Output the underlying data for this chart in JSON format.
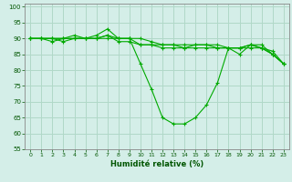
{
  "xlabel": "Humidité relative (%)",
  "bg_color": "#d4eee8",
  "grid_color": "#b0d8c8",
  "line_color": "#00aa00",
  "xlim": [
    -0.5,
    23.5
  ],
  "ylim": [
    55,
    101
  ],
  "yticks": [
    55,
    60,
    65,
    70,
    75,
    80,
    85,
    90,
    95,
    100
  ],
  "xticks": [
    0,
    1,
    2,
    3,
    4,
    5,
    6,
    7,
    8,
    9,
    10,
    11,
    12,
    13,
    14,
    15,
    16,
    17,
    18,
    19,
    20,
    21,
    22,
    23
  ],
  "series": [
    [
      90,
      90,
      90,
      90,
      91,
      90,
      91,
      93,
      90,
      90,
      90,
      89,
      88,
      88,
      88,
      88,
      88,
      88,
      87,
      87,
      88,
      87,
      86,
      82
    ],
    [
      90,
      90,
      90,
      90,
      90,
      90,
      90,
      91,
      89,
      89,
      88,
      88,
      88,
      88,
      87,
      88,
      88,
      87,
      87,
      87,
      87,
      87,
      85,
      82
    ],
    [
      90,
      90,
      90,
      89,
      90,
      90,
      90,
      91,
      90,
      90,
      82,
      74,
      65,
      63,
      63,
      65,
      69,
      76,
      87,
      85,
      88,
      88,
      85,
      82
    ],
    [
      90,
      90,
      89,
      90,
      90,
      90,
      90,
      90,
      90,
      90,
      88,
      88,
      87,
      87,
      87,
      87,
      87,
      87,
      87,
      87,
      88,
      87,
      85,
      82
    ]
  ]
}
